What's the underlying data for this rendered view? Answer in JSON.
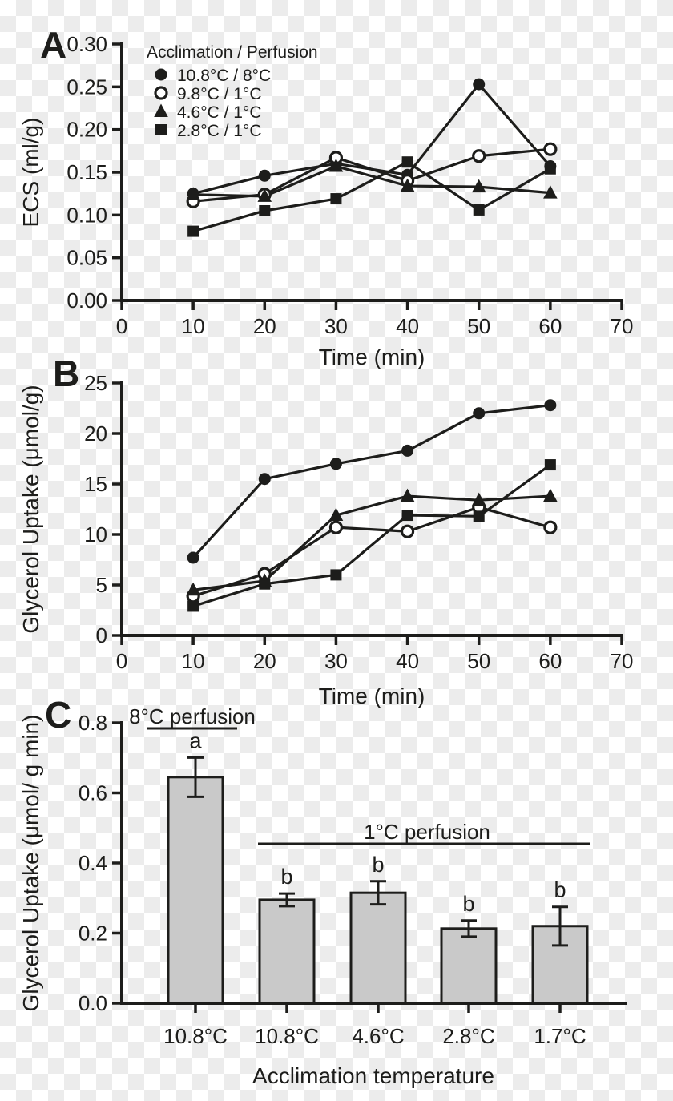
{
  "colors": {
    "ink": "#1d1d1b",
    "bar_fill": "#c9c9c9",
    "open_marker_fill": "#ffffff",
    "checker_light": "#ffffff",
    "checker_dark": "#ececec"
  },
  "chart_data": [
    {
      "panel_label": "A",
      "type": "line",
      "title": "",
      "xlabel": "Time (min)",
      "ylabel": "ECS (ml/g)",
      "xlim": [
        0,
        70
      ],
      "ylim": [
        0,
        0.3
      ],
      "grid": false,
      "x_tick_values": [
        0,
        10,
        20,
        30,
        40,
        50,
        60,
        70
      ],
      "x_tick_labels": [
        "0",
        "10",
        "20",
        "30",
        "40",
        "50",
        "60",
        "70"
      ],
      "y_tick_values": [
        0,
        0.05,
        0.1,
        0.15,
        0.2,
        0.25,
        0.3
      ],
      "y_tick_labels": [
        "0.00",
        "0.05",
        "0.10",
        "0.15",
        "0.20",
        "0.25",
        "0.30"
      ],
      "legend": {
        "title": "Acclimation / Perfusion",
        "position": "upper-left"
      },
      "x": [
        10,
        20,
        30,
        40,
        50,
        60
      ],
      "series": [
        {
          "name": "10.8°C / 8°C",
          "marker": "filled-circle",
          "values": [
            0.125,
            0.146,
            0.16,
            0.147,
            0.253,
            0.157
          ]
        },
        {
          "name": "9.8°C / 1°C",
          "marker": "open-circle",
          "values": [
            0.116,
            0.124,
            0.167,
            0.14,
            0.169,
            0.177
          ]
        },
        {
          "name": "4.6°C / 1°C",
          "marker": "filled-triangle",
          "values": [
            0.124,
            0.122,
            0.157,
            0.134,
            0.133,
            0.126
          ]
        },
        {
          "name": "2.8°C / 1°C",
          "marker": "filled-square",
          "values": [
            0.081,
            0.105,
            0.119,
            0.162,
            0.106,
            0.154
          ]
        }
      ]
    },
    {
      "panel_label": "B",
      "type": "line",
      "title": "",
      "xlabel": "Time (min)",
      "ylabel": "Glycerol Uptake (μmol/g)",
      "xlim": [
        0,
        70
      ],
      "ylim": [
        0,
        25
      ],
      "grid": false,
      "x_tick_values": [
        0,
        10,
        20,
        30,
        40,
        50,
        60,
        70
      ],
      "x_tick_labels": [
        "0",
        "10",
        "20",
        "30",
        "40",
        "50",
        "60",
        "70"
      ],
      "y_tick_values": [
        0,
        5,
        10,
        15,
        20,
        25
      ],
      "y_tick_labels": [
        "0",
        "5",
        "10",
        "15",
        "20",
        "25"
      ],
      "legend": null,
      "x": [
        10,
        20,
        30,
        40,
        50,
        60
      ],
      "series": [
        {
          "name": "10.8°C / 8°C",
          "marker": "filled-circle",
          "values": [
            7.7,
            15.5,
            17.0,
            18.3,
            22.0,
            22.8
          ]
        },
        {
          "name": "9.8°C / 1°C",
          "marker": "open-circle",
          "values": [
            3.9,
            6.1,
            10.7,
            10.3,
            12.7,
            10.7
          ]
        },
        {
          "name": "4.6°C / 1°C",
          "marker": "filled-triangle",
          "values": [
            4.5,
            5.4,
            11.9,
            13.8,
            13.4,
            13.8
          ]
        },
        {
          "name": "2.8°C / 1°C",
          "marker": "filled-square",
          "values": [
            2.9,
            5.1,
            6.0,
            11.9,
            11.8,
            16.9
          ]
        }
      ]
    },
    {
      "panel_label": "C",
      "type": "bar",
      "title": "",
      "xlabel": "Acclimation temperature",
      "ylabel": "Glycerol Uptake (μmol/ g min)",
      "ylim": [
        0,
        0.8
      ],
      "grid": false,
      "y_tick_values": [
        0,
        0.2,
        0.4,
        0.6,
        0.8
      ],
      "y_tick_labels": [
        "0.0",
        "0.2",
        "0.4",
        "0.6",
        "0.8"
      ],
      "categories": [
        "10.8°C",
        "10.8°C",
        "4.6°C",
        "2.8°C",
        "1.7°C"
      ],
      "values": [
        0.645,
        0.295,
        0.315,
        0.213,
        0.22
      ],
      "errors": [
        0.056,
        0.018,
        0.033,
        0.023,
        0.055
      ],
      "sig_letters": [
        "a",
        "b",
        "b",
        "b",
        "b"
      ],
      "annotations": [
        {
          "text": "8°C perfusion",
          "covers": "bar 1"
        },
        {
          "text": "1°C perfusion",
          "covers": "bars 2-5"
        }
      ]
    }
  ]
}
